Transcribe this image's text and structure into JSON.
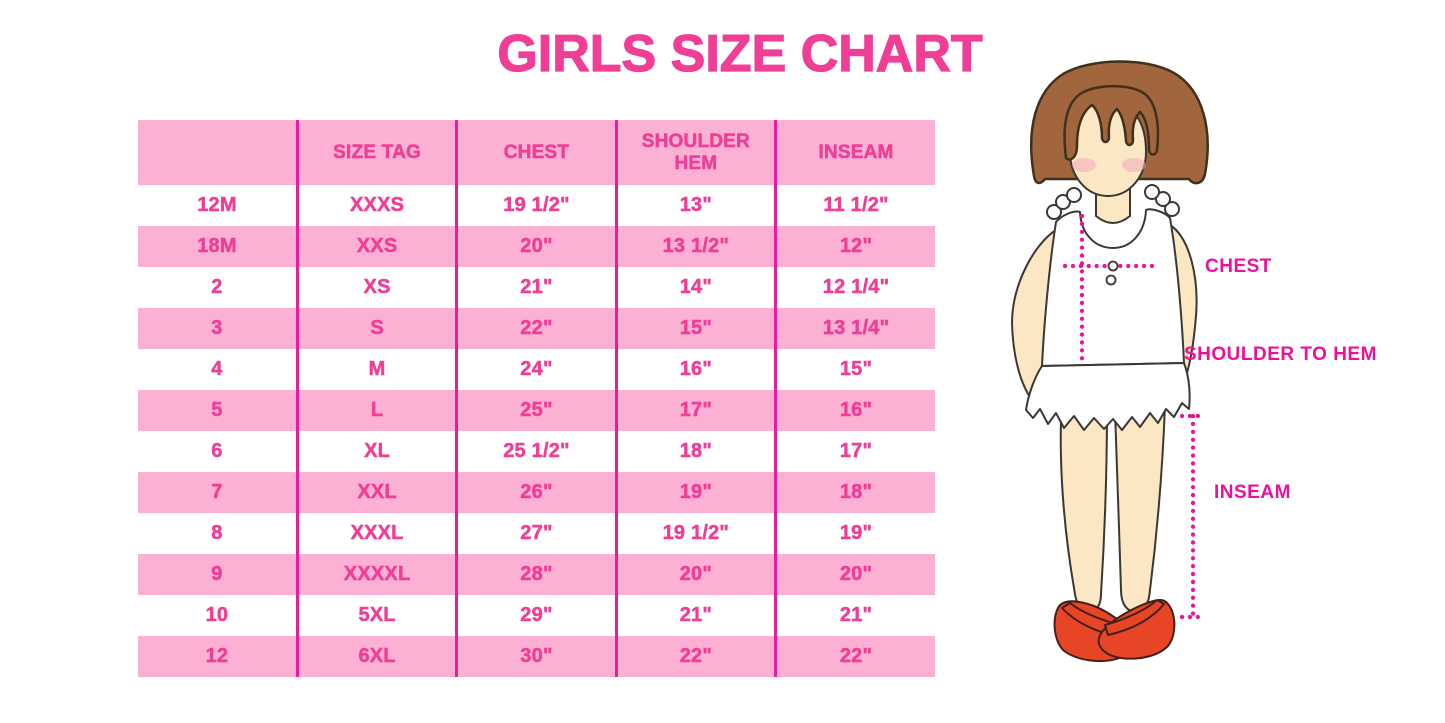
{
  "page": {
    "title": "GIRLS SIZE CHART"
  },
  "colors": {
    "title_pink": "#f03e96",
    "row_pink": "#fcb0d3",
    "divider_magenta": "#ea1c9c",
    "label_magenta": "#ee109b",
    "hair_brown": "#a2663e",
    "skin_tone": "#fbe7c3",
    "blush_pink": "#f2a9bc",
    "dress_white": "#ffffff",
    "shoe_red": "#e84527"
  },
  "table": {
    "columns": [
      "",
      "SIZE TAG",
      "CHEST",
      "SHOULDER HEM",
      "INSEAM"
    ],
    "rows": [
      [
        "12M",
        "XXXS",
        "19 1/2\"",
        "13\"",
        "11 1/2\""
      ],
      [
        "18M",
        "XXS",
        "20\"",
        "13 1/2\"",
        "12\""
      ],
      [
        "2",
        "XS",
        "21\"",
        "14\"",
        "12 1/4\""
      ],
      [
        "3",
        "S",
        "22\"",
        "15\"",
        "13 1/4\""
      ],
      [
        "4",
        "M",
        "24\"",
        "16\"",
        "15\""
      ],
      [
        "5",
        "L",
        "25\"",
        "17\"",
        "16\""
      ],
      [
        "6",
        "XL",
        "25 1/2\"",
        "18\"",
        "17\""
      ],
      [
        "7",
        "XXL",
        "26\"",
        "19\"",
        "18\""
      ],
      [
        "8",
        "XXXL",
        "27\"",
        "19 1/2\"",
        "19\""
      ],
      [
        "9",
        "XXXXL",
        "28\"",
        "20\"",
        "20\""
      ],
      [
        "10",
        "5XL",
        "29\"",
        "21\"",
        "21\""
      ],
      [
        "12",
        "6XL",
        "30\"",
        "22\"",
        "22\""
      ]
    ]
  },
  "figure": {
    "chest_label": "CHEST",
    "shoulder_to_hem_label": "SHOULDER TO HEM",
    "inseam_label": "INSEAM"
  }
}
